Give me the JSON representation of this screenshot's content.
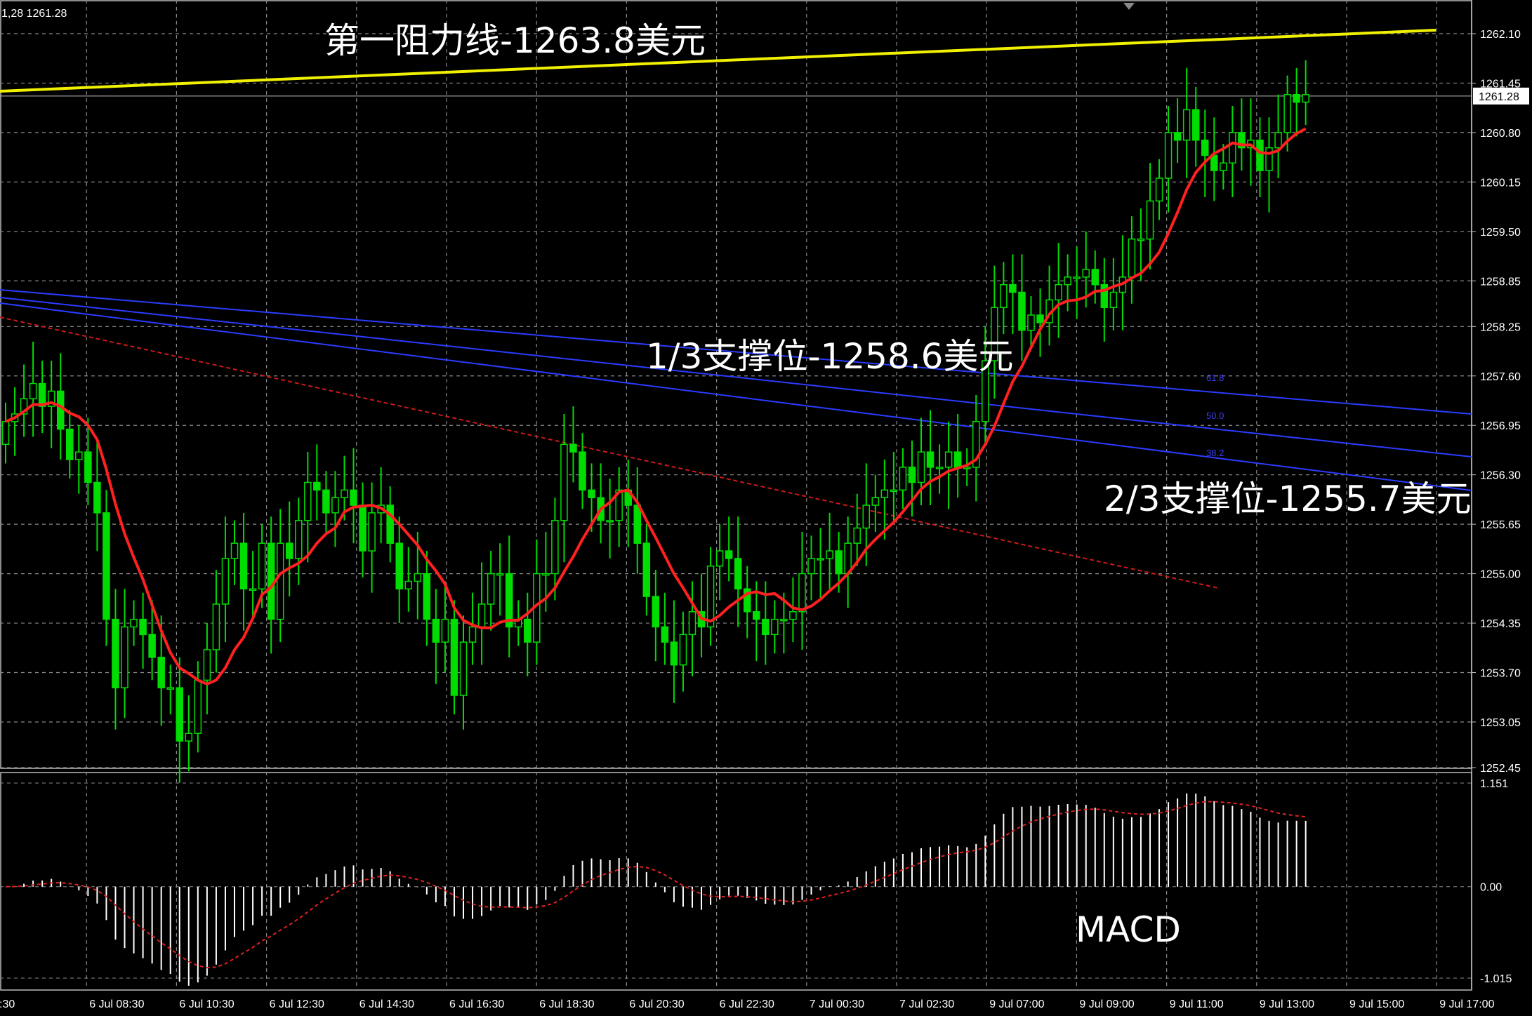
{
  "window": {
    "price_readout": "1,28  1261.28"
  },
  "colors": {
    "background": "#000000",
    "grid": "#8a8a8a",
    "bull_candle": "#00dd00",
    "body_fill": "#000000",
    "moving_average": "#ff2020",
    "resistance_line": "#f0f000",
    "trend_channel": "#2a3cff",
    "dashed_trend": "#cc1a1a",
    "macd_histogram": "#ffffff",
    "macd_signal": "#dd2222",
    "fib_label": "#3b3bff",
    "current_price_box": "#ffffff"
  },
  "annotations": {
    "resistance": "第一阻力线-1263.8美元",
    "support_one": "1/3支撑位-1258.6美元",
    "support_two": "2/3支撑位-1255.7美元",
    "macd": "MACD"
  },
  "fib_levels": [
    "61.8",
    "50.0",
    "38.2"
  ],
  "current_price": "1261.28",
  "chart_data": {
    "type": "candlestick",
    "instrument_quote": "1261.28",
    "ylim": [
      1252.45,
      1262.1
    ],
    "y_ticks": [
      "1262.10",
      "1261.45",
      "1260.80",
      "1260.15",
      "1259.50",
      "1258.85",
      "1258.25",
      "1257.60",
      "1256.95",
      "1256.30",
      "1255.65",
      "1255.00",
      "1254.35",
      "1253.70",
      "1253.05",
      "1252.45"
    ],
    "x_ticks": [
      ":30",
      "6 Jul 08:30",
      "6 Jul 10:30",
      "6 Jul 12:30",
      "6 Jul 14:30",
      "6 Jul 16:30",
      "6 Jul 18:30",
      "6 Jul 20:30",
      "6 Jul 22:30",
      "7 Jul 00:30",
      "7 Jul 02:30",
      "9 Jul 07:00",
      "9 Jul 09:00",
      "9 Jul 11:00",
      "9 Jul 13:00",
      "9 Jul 15:00",
      "9 Jul 17:00"
    ],
    "levels": {
      "resistance": 1263.8,
      "support_one_third": 1258.6,
      "support_two_third": 1255.7
    },
    "macd": {
      "ylim": [
        -1.015,
        1.151
      ],
      "y_ticks": [
        "1.151",
        "0.00",
        "-1.015"
      ],
      "label": "MACD"
    },
    "closes": [
      1257.0,
      1257.1,
      1257.3,
      1257.5,
      1257.2,
      1257.4,
      1256.9,
      1256.5,
      1256.6,
      1256.2,
      1255.8,
      1254.4,
      1253.5,
      1254.3,
      1254.4,
      1254.2,
      1253.9,
      1253.5,
      1253.5,
      1252.8,
      1252.9,
      1253.6,
      1254.0,
      1254.6,
      1255.2,
      1255.4,
      1254.8,
      1254.8,
      1255.4,
      1254.4,
      1255.4,
      1255.2,
      1255.7,
      1256.2,
      1256.1,
      1255.8,
      1256.0,
      1256.1,
      1255.9,
      1255.3,
      1255.8,
      1255.9,
      1255.4,
      1254.8,
      1254.9,
      1255.0,
      1254.4,
      1254.1,
      1254.4,
      1253.4,
      1254.1,
      1254.3,
      1254.6,
      1255.0,
      1255.0,
      1254.3,
      1254.4,
      1254.1,
      1255.0,
      1255.0,
      1255.7,
      1256.7,
      1256.6,
      1256.1,
      1256.0,
      1255.7,
      1255.7,
      1256.1,
      1255.9,
      1255.4,
      1254.7,
      1254.3,
      1254.1,
      1253.8,
      1254.2,
      1254.5,
      1254.3,
      1255.1,
      1255.3,
      1255.2,
      1254.8,
      1254.5,
      1254.4,
      1254.2,
      1254.4,
      1254.4,
      1254.5,
      1255.0,
      1255.2,
      1255.2,
      1255.3,
      1255.0,
      1255.4,
      1255.6,
      1255.9,
      1256.0,
      1256.1,
      1256.1,
      1256.4,
      1256.2,
      1256.6,
      1256.4,
      1256.4,
      1256.6,
      1256.4,
      1256.4,
      1257.0,
      1257.8,
      1258.5,
      1258.8,
      1258.7,
      1258.2,
      1258.4,
      1258.3,
      1258.6,
      1258.8,
      1258.9,
      1258.9,
      1259.0,
      1258.8,
      1258.5,
      1258.7,
      1258.9,
      1259.4,
      1259.4,
      1259.9,
      1260.2,
      1260.8,
      1260.7,
      1261.1,
      1260.7,
      1260.5,
      1260.3,
      1260.4,
      1260.8,
      1260.6,
      1260.7,
      1260.3,
      1260.6,
      1260.8,
      1261.3,
      1261.2,
      1261.3
    ]
  }
}
